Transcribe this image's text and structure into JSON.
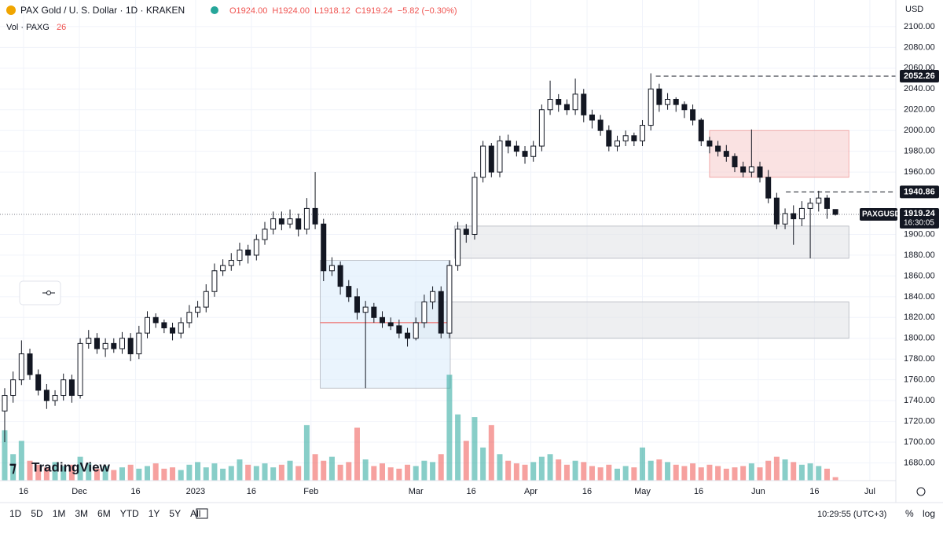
{
  "chart_data": {
    "type": "candlestick",
    "title": "PAX Gold / U. S. Dollar · 1D · KRAKEN",
    "ohlc_legend": [
      "O1924.00",
      "H1924.00",
      "L1918.12",
      "C1919.24",
      "−5.82 (−0.30%)"
    ],
    "volume_label": "Vol · PAXG",
    "volume_last": 26,
    "currency": "USD",
    "logo": "TradingView",
    "up_color": "#ffffff",
    "down_color": "#131722",
    "volume_up_color": "#26a69a",
    "volume_down_color": "#ef5350",
    "open": [
      1730,
      1745,
      1760,
      1785,
      1765,
      1750,
      1740,
      1745,
      1760,
      1745,
      1795,
      1800,
      1790,
      1795,
      1790,
      1800,
      1785,
      1805,
      1820,
      1815,
      1810,
      1805,
      1815,
      1825,
      1830,
      1845,
      1865,
      1870,
      1875,
      1885,
      1880,
      1895,
      1905,
      1915,
      1910,
      1915,
      1905,
      1925,
      1910,
      1865,
      1870,
      1850,
      1840,
      1825,
      1830,
      1820,
      1815,
      1812,
      1805,
      1800,
      1815,
      1835,
      1845,
      1805,
      1870,
      1905,
      1900,
      1955,
      1985,
      1960,
      1990,
      1985,
      1980,
      1975,
      1985,
      2020,
      2030,
      2025,
      2020,
      2035,
      2015,
      2010,
      2000,
      1985,
      1990,
      1995,
      1990,
      2005,
      2040,
      2025,
      2030,
      2025,
      2020,
      2010,
      1990,
      1985,
      1980,
      1975,
      1965,
      1960,
      1965,
      1955,
      1935,
      1910,
      1920,
      1915,
      1925,
      1930,
      1935,
      1924
    ],
    "high": [
      1752,
      1768,
      1798,
      1790,
      1770,
      1756,
      1750,
      1766,
      1765,
      1800,
      1808,
      1805,
      1800,
      1800,
      1806,
      1805,
      1812,
      1826,
      1824,
      1818,
      1815,
      1820,
      1832,
      1836,
      1852,
      1872,
      1876,
      1882,
      1892,
      1890,
      1900,
      1912,
      1922,
      1922,
      1924,
      1920,
      1935,
      1960,
      1915,
      1878,
      1874,
      1856,
      1848,
      1836,
      1834,
      1826,
      1820,
      1818,
      1810,
      1820,
      1842,
      1850,
      1850,
      1875,
      1912,
      1910,
      1960,
      1990,
      1988,
      1995,
      1996,
      1990,
      1985,
      1990,
      2025,
      2048,
      2035,
      2030,
      2050,
      2040,
      2020,
      2015,
      2005,
      1995,
      2000,
      1998,
      2010,
      2055,
      2045,
      2036,
      2032,
      2028,
      2025,
      2012,
      1994,
      1990,
      1986,
      1978,
      1970,
      2001,
      1970,
      1962,
      1940,
      1925,
      1928,
      1932,
      1935,
      1942,
      1938,
      1924
    ],
    "low": [
      1700,
      1738,
      1755,
      1760,
      1745,
      1732,
      1735,
      1740,
      1738,
      1742,
      1790,
      1785,
      1782,
      1786,
      1785,
      1778,
      1780,
      1800,
      1810,
      1805,
      1798,
      1800,
      1810,
      1820,
      1825,
      1840,
      1860,
      1865,
      1870,
      1872,
      1875,
      1890,
      1900,
      1904,
      1906,
      1898,
      1900,
      1905,
      1855,
      1860,
      1842,
      1835,
      1818,
      1752,
      1815,
      1810,
      1808,
      1800,
      1792,
      1798,
      1810,
      1828,
      1800,
      1800,
      1865,
      1892,
      1895,
      1950,
      1955,
      1955,
      1978,
      1975,
      1968,
      1970,
      1980,
      2015,
      2018,
      2015,
      2015,
      2008,
      2002,
      1995,
      1980,
      1980,
      1985,
      1985,
      1985,
      2000,
      2018,
      2020,
      2018,
      2012,
      2005,
      1985,
      1978,
      1975,
      1970,
      1960,
      1955,
      1955,
      1950,
      1930,
      1905,
      1905,
      1890,
      1908,
      1877,
      1922,
      1915,
      1918.12
    ],
    "close": [
      1745,
      1760,
      1785,
      1765,
      1750,
      1740,
      1745,
      1760,
      1745,
      1795,
      1800,
      1790,
      1795,
      1790,
      1800,
      1785,
      1805,
      1820,
      1815,
      1810,
      1805,
      1815,
      1825,
      1830,
      1845,
      1865,
      1870,
      1875,
      1885,
      1880,
      1895,
      1905,
      1915,
      1910,
      1915,
      1905,
      1925,
      1910,
      1865,
      1870,
      1850,
      1840,
      1825,
      1830,
      1820,
      1815,
      1812,
      1805,
      1800,
      1815,
      1835,
      1845,
      1805,
      1870,
      1905,
      1900,
      1955,
      1985,
      1960,
      1990,
      1985,
      1980,
      1975,
      1985,
      2020,
      2030,
      2025,
      2020,
      2035,
      2015,
      2010,
      2000,
      1985,
      1990,
      1995,
      1990,
      2005,
      2040,
      2025,
      2030,
      2025,
      2020,
      2010,
      1990,
      1985,
      1980,
      1975,
      1965,
      1960,
      1965,
      1955,
      1935,
      1910,
      1920,
      1915,
      1925,
      1930,
      1935,
      1925,
      1919.24
    ],
    "volume": [
      380,
      200,
      300,
      150,
      120,
      100,
      140,
      110,
      120,
      180,
      130,
      90,
      110,
      80,
      100,
      120,
      90,
      110,
      130,
      90,
      100,
      80,
      120,
      140,
      100,
      130,
      90,
      110,
      160,
      120,
      110,
      130,
      100,
      120,
      150,
      110,
      420,
      200,
      150,
      180,
      120,
      140,
      400,
      160,
      110,
      130,
      100,
      90,
      120,
      110,
      150,
      140,
      200,
      800,
      500,
      300,
      480,
      250,
      420,
      200,
      150,
      130,
      120,
      140,
      180,
      200,
      160,
      120,
      150,
      140,
      110,
      100,
      120,
      90,
      110,
      100,
      250,
      150,
      160,
      140,
      120,
      110,
      130,
      100,
      120,
      110,
      90,
      100,
      110,
      130,
      100,
      150,
      180,
      160,
      140,
      120,
      130,
      110,
      90,
      26
    ],
    "volume_ylim": [
      0,
      3500
    ],
    "xlim": [
      -0.56,
      106.2
    ],
    "xticks": [
      {
        "value": 2.25,
        "label": "16"
      },
      {
        "value": 8.9,
        "label": "Dec"
      },
      {
        "value": 15.6,
        "label": "16"
      },
      {
        "value": 22.75,
        "label": "2023"
      },
      {
        "value": 29.4,
        "label": "16"
      },
      {
        "value": 36.5,
        "label": "Feb"
      },
      {
        "value": 49.0,
        "label": "Mar"
      },
      {
        "value": 55.6,
        "label": "16"
      },
      {
        "value": 62.7,
        "label": "Apr"
      },
      {
        "value": 69.4,
        "label": "16"
      },
      {
        "value": 76.0,
        "label": "May"
      },
      {
        "value": 82.7,
        "label": "16"
      },
      {
        "value": 89.8,
        "label": "Jun"
      },
      {
        "value": 96.5,
        "label": "16"
      },
      {
        "value": 103.1,
        "label": "Jul"
      }
    ],
    "ylim": [
      1663,
      2109
    ],
    "yticks": [
      {
        "value": 1680,
        "label": "1680.00"
      },
      {
        "value": 1700,
        "label": "1700.00"
      },
      {
        "value": 1720,
        "label": "1720.00"
      },
      {
        "value": 1740,
        "label": "1740.00"
      },
      {
        "value": 1760,
        "label": "1760.00"
      },
      {
        "value": 1780,
        "label": "1780.00"
      },
      {
        "value": 1800,
        "label": "1800.00"
      },
      {
        "value": 1820,
        "label": "1820.00"
      },
      {
        "value": 1840,
        "label": "1840.00"
      },
      {
        "value": 1860,
        "label": "1860.00"
      },
      {
        "value": 1880,
        "label": "1880.00"
      },
      {
        "value": 1900,
        "label": "1900.00"
      },
      {
        "value": 1960,
        "label": "1960.00"
      },
      {
        "value": 1980,
        "label": "1980.00"
      },
      {
        "value": 2000,
        "label": "2000.00"
      },
      {
        "value": 2020,
        "label": "2020.00"
      },
      {
        "value": 2040,
        "label": "2040.00"
      },
      {
        "value": 2060,
        "label": "2060.00"
      },
      {
        "value": 2080,
        "label": "2080.00"
      },
      {
        "value": 2100,
        "label": "2100.00"
      }
    ],
    "zones": [
      {
        "range": [
          1955,
          2000
        ],
        "from": 84.0,
        "to": 100.6,
        "color": "#f7cfcf"
      },
      {
        "range": [
          1877,
          1908
        ],
        "from": 53.6,
        "to": 100.6,
        "color": "#e3e4e8"
      },
      {
        "range": [
          1800,
          1835
        ],
        "from": 48.9,
        "to": 100.6,
        "color": "#e3e4e8"
      },
      {
        "range": [
          1752,
          1875
        ],
        "from": 37.6,
        "to": 53.1,
        "color": "#dcecfb"
      }
    ],
    "poc": {
      "value": 1815,
      "from": 37.6,
      "to": 53.1,
      "color": "#ef5350"
    },
    "levels": [
      {
        "value": 2052.26,
        "from": 77.6
      },
      {
        "value": 1940.86,
        "from": 93.1
      }
    ],
    "last_price": {
      "symbol": "PAXGUSD",
      "value": 1919.24,
      "countdown": "16:30:05"
    },
    "timeframes": [
      "1D",
      "5D",
      "1M",
      "3M",
      "6M",
      "YTD",
      "1Y",
      "5Y",
      "All"
    ],
    "clock": "10:29:55 (UTC+3)",
    "percent_toggle": "%",
    "log_toggle": "log"
  }
}
